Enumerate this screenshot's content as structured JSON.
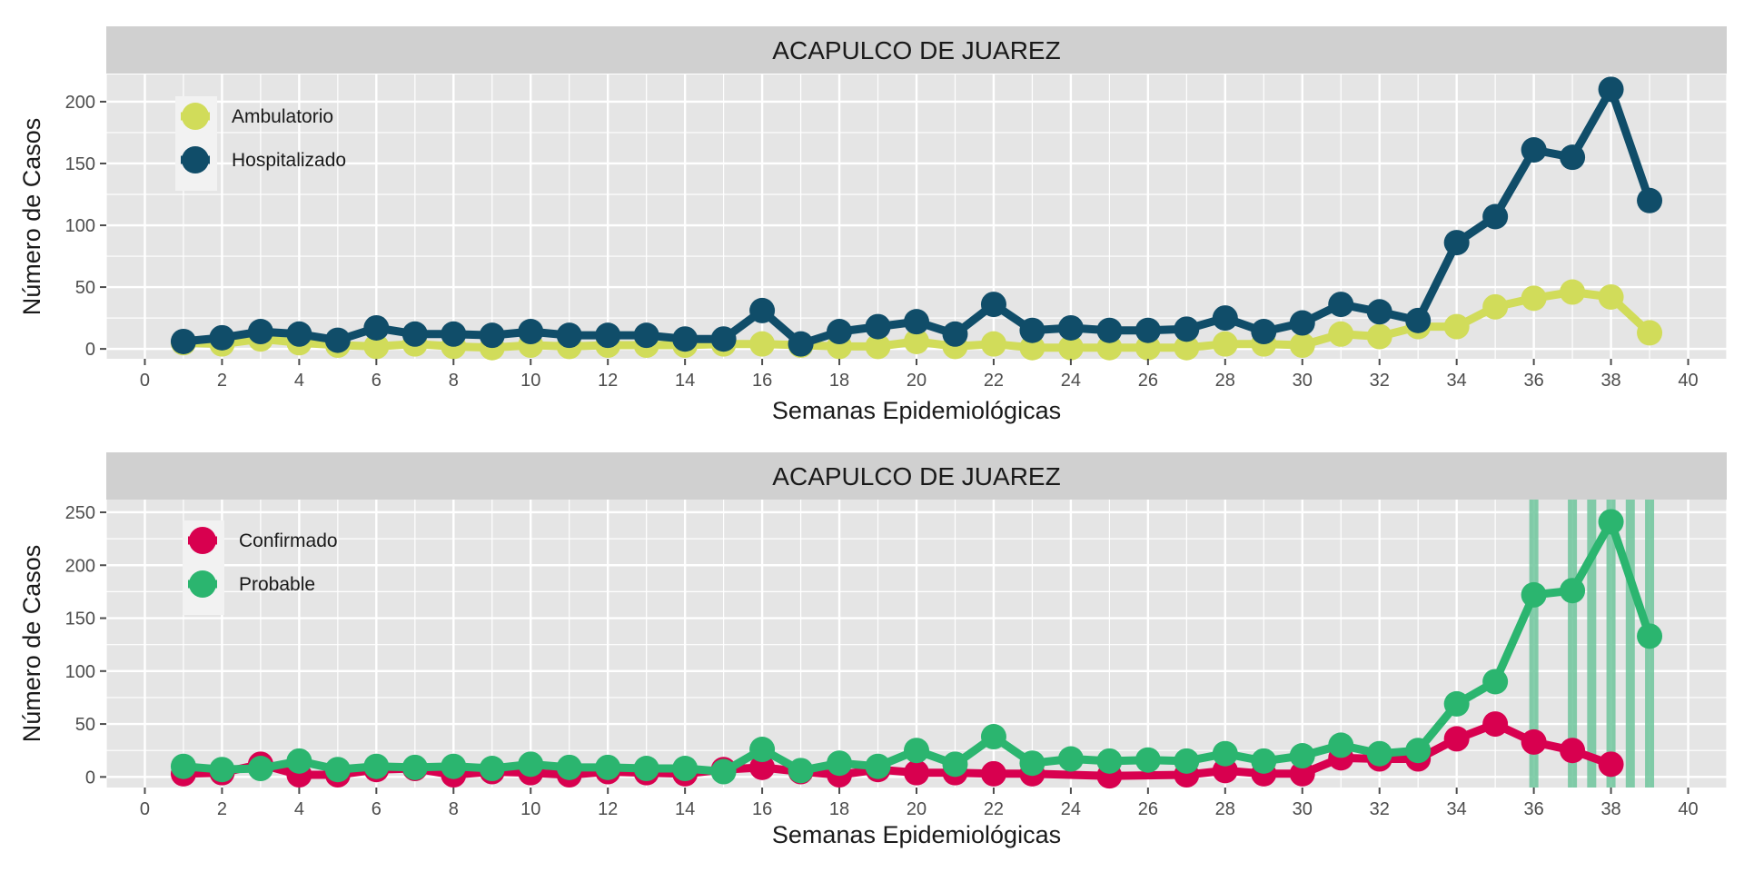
{
  "colors": {
    "panel_bg": "#e5e5e5",
    "strip_bg": "#d0d0d0",
    "grid": "#ffffff",
    "text": "#1a1a1a",
    "tick_text": "#4d4d4d",
    "ambulatorio": "#d1dc5a",
    "hospitalizado": "#104d69",
    "confirmado": "#d8004f",
    "probable": "#2bb56f",
    "vline": "#6fc59c"
  },
  "chart_data": [
    {
      "type": "line",
      "title": "ACAPULCO DE JUAREZ",
      "xlabel": "Semanas Epidemiológicas",
      "ylabel": "Número de Casos",
      "xlim": [
        -1,
        41
      ],
      "ylim": [
        -8,
        222
      ],
      "x_ticks": [
        0,
        2,
        4,
        6,
        8,
        10,
        12,
        14,
        16,
        18,
        20,
        22,
        24,
        26,
        28,
        30,
        32,
        34,
        36,
        38,
        40
      ],
      "y_ticks": [
        0,
        50,
        100,
        150,
        200
      ],
      "grid": true,
      "legend_position": "top-left",
      "x": [
        1,
        2,
        3,
        4,
        5,
        6,
        7,
        8,
        9,
        10,
        11,
        12,
        13,
        14,
        15,
        16,
        17,
        18,
        19,
        20,
        21,
        22,
        23,
        24,
        25,
        26,
        27,
        28,
        29,
        30,
        31,
        32,
        33,
        34,
        35,
        36,
        37,
        38,
        39
      ],
      "series": [
        {
          "name": "Ambulatorio",
          "color": "#d1dc5a",
          "values": [
            5,
            4,
            8,
            5,
            3,
            2,
            4,
            2,
            1,
            3,
            2,
            3,
            3,
            3,
            4,
            4,
            3,
            2,
            2,
            6,
            2,
            4,
            1,
            1,
            1,
            1,
            1,
            4,
            4,
            3,
            12,
            10,
            18,
            18,
            34,
            41,
            46,
            42,
            13
          ]
        },
        {
          "name": "Hospitalizado",
          "color": "#104d69",
          "values": [
            6,
            9,
            14,
            12,
            7,
            17,
            12,
            12,
            11,
            14,
            11,
            11,
            11,
            8,
            8,
            31,
            4,
            14,
            18,
            22,
            12,
            36,
            15,
            17,
            15,
            15,
            16,
            25,
            14,
            21,
            36,
            30,
            23,
            86,
            107,
            161,
            155,
            210,
            120
          ]
        }
      ]
    },
    {
      "type": "line",
      "title": "ACAPULCO DE JUAREZ",
      "xlabel": "Semanas Epidemiológicas",
      "ylabel": "Número de Casos",
      "xlim": [
        -1,
        41
      ],
      "ylim": [
        -10,
        262
      ],
      "x_ticks": [
        0,
        2,
        4,
        6,
        8,
        10,
        12,
        14,
        16,
        18,
        20,
        22,
        24,
        26,
        28,
        30,
        32,
        34,
        36,
        38,
        40
      ],
      "y_ticks": [
        0,
        50,
        100,
        150,
        200,
        250
      ],
      "grid": true,
      "legend_position": "top-left",
      "x": [
        1,
        2,
        3,
        4,
        5,
        6,
        7,
        8,
        9,
        10,
        11,
        12,
        13,
        14,
        15,
        16,
        17,
        18,
        19,
        20,
        21,
        22,
        23,
        24,
        25,
        26,
        27,
        28,
        29,
        30,
        31,
        32,
        33,
        34,
        35,
        36,
        37,
        38,
        39
      ],
      "vlines": [
        36,
        37,
        37.5,
        38,
        38.5,
        39
      ],
      "series": [
        {
          "name": "Confirmado",
          "color": "#d8004f",
          "values": [
            3,
            4,
            12,
            2,
            2,
            7,
            8,
            2,
            5,
            4,
            2,
            5,
            4,
            3,
            7,
            9,
            5,
            2,
            7,
            4,
            4,
            3,
            3,
            null,
            1,
            null,
            2,
            6,
            3,
            3,
            18,
            17,
            17,
            36,
            50,
            33,
            25,
            12,
            null
          ]
        },
        {
          "name": "Probable",
          "color": "#2bb56f",
          "values": [
            10,
            7,
            8,
            15,
            7,
            10,
            9,
            10,
            8,
            12,
            9,
            9,
            8,
            8,
            5,
            26,
            6,
            13,
            10,
            25,
            12,
            38,
            13,
            17,
            15,
            16,
            15,
            22,
            15,
            20,
            30,
            22,
            25,
            69,
            90,
            172,
            176,
            241,
            133
          ]
        }
      ]
    }
  ]
}
